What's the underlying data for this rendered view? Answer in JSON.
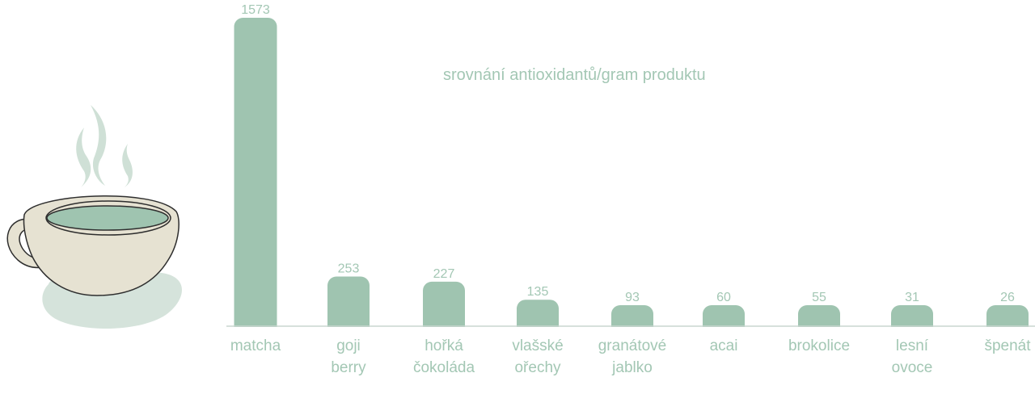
{
  "chart_data": {
    "type": "bar",
    "title": "srovnání antioxidantů/gram produktu",
    "categories": [
      [
        "matcha"
      ],
      [
        "goji",
        "berry"
      ],
      [
        "hořká",
        "čokoláda"
      ],
      [
        "vlašské",
        "ořechy"
      ],
      [
        "granátové",
        "jablko"
      ],
      [
        "acai"
      ],
      [
        "brokolice"
      ],
      [
        "lesní",
        "ovoce"
      ],
      [
        "špenát"
      ]
    ],
    "values": [
      1573,
      253,
      227,
      135,
      93,
      60,
      55,
      31,
      26
    ],
    "value_labels": [
      "1573",
      "253",
      "227",
      "135",
      "93",
      "60",
      "55",
      "31",
      "26"
    ],
    "xlabel": "",
    "ylabel": "",
    "grid": false,
    "legend": "none"
  },
  "colors": {
    "bar": "#9fc4b0",
    "text": "#a3c7b4",
    "axis": "#c9d6cf",
    "cup_body": "#e6e2d2",
    "cup_outline": "#2e2e2e",
    "tea": "#9fc4b0",
    "shadow": "#d5e3db",
    "steam": "#cfe0d6"
  },
  "decoration": {
    "icon": "tea-cup-icon"
  }
}
